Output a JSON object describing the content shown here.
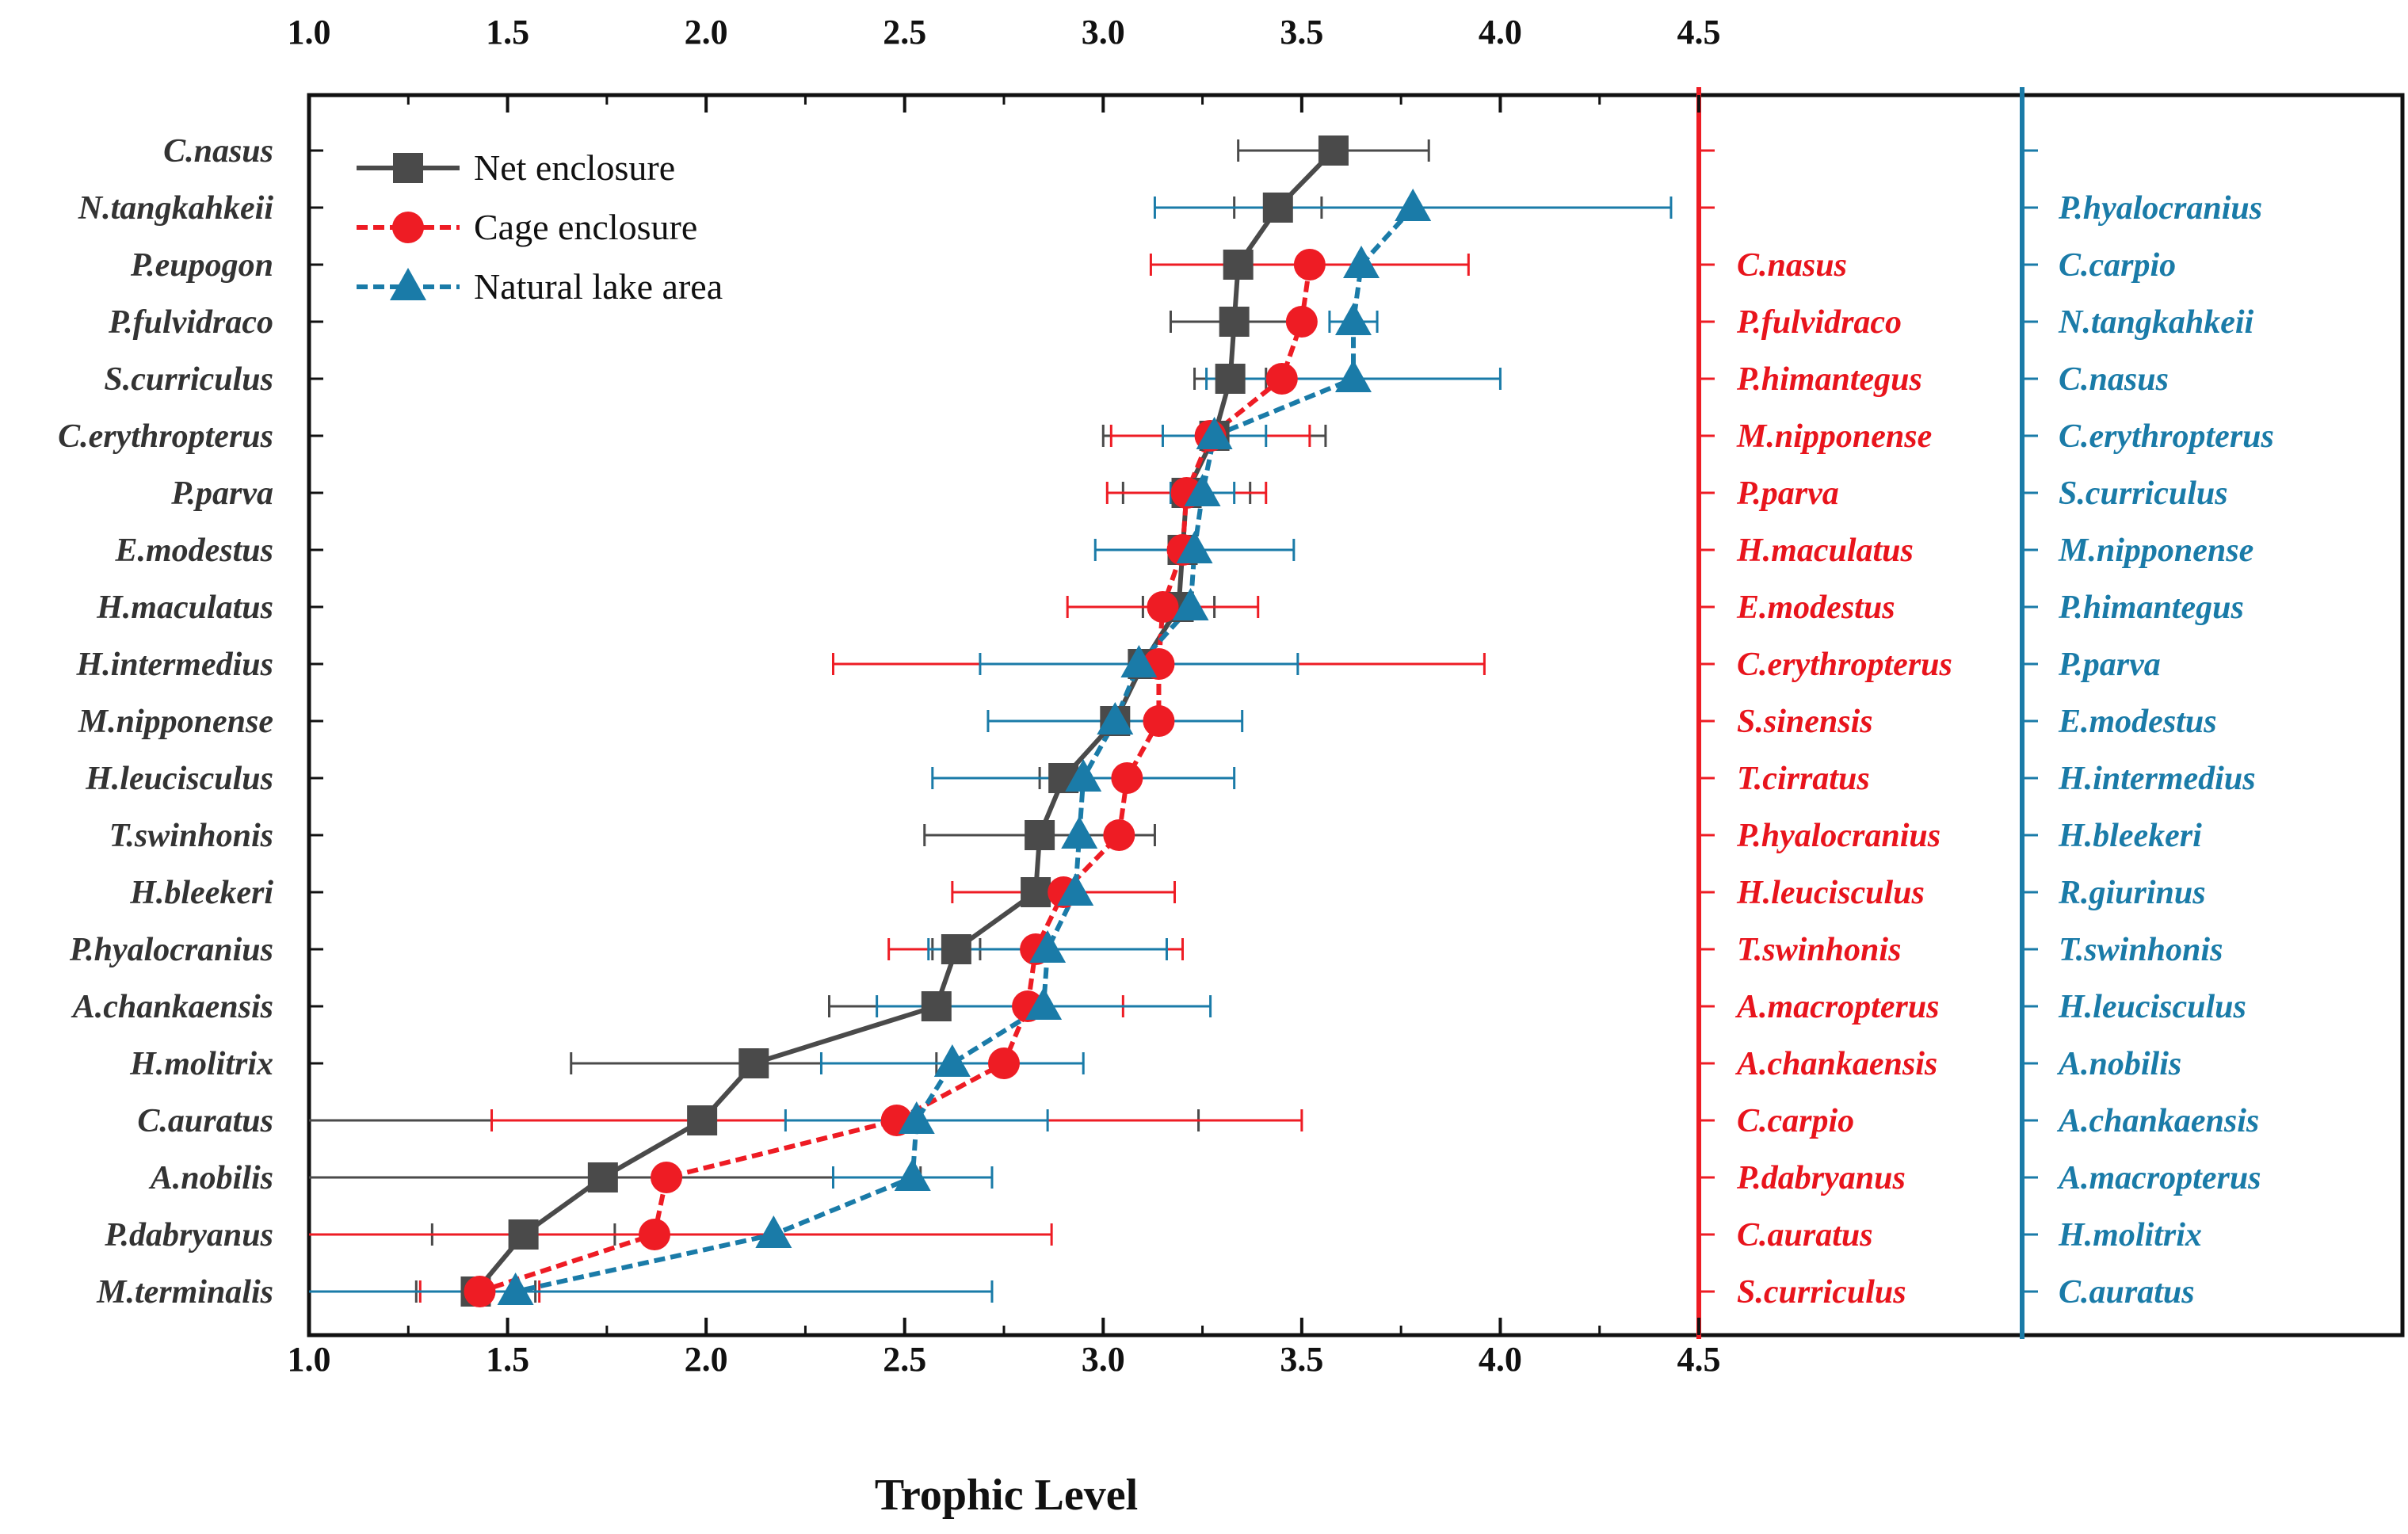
{
  "chart_data": {
    "type": "scatter",
    "xlabel": "Trophic Level",
    "xlim": [
      1.0,
      4.5
    ],
    "xticks": [
      "1.0",
      "1.5",
      "2.0",
      "2.5",
      "3.0",
      "3.5",
      "4.0",
      "4.5"
    ],
    "legend_position": "top-left",
    "categories": [
      "C.nasus",
      "N.tangkahkeii",
      "P.eupogon",
      "P.fulvidraco",
      "S.curriculus",
      "C.erythropterus",
      "P.parva",
      "E.modestus",
      "H.maculatus",
      "H.intermedius",
      "M.nipponense",
      "H.leucisculus",
      "T.swinhonis",
      "H.bleekeri",
      "P.hyalocranius",
      "A.chankaensis",
      "H.molitrix",
      "C.auratus",
      "A.nobilis",
      "P.dabryanus",
      "M.terminalis"
    ],
    "series": [
      {
        "name": "Net enclosure",
        "color": "#4a4a4a",
        "marker": "square",
        "line": "solid",
        "values": [
          3.58,
          3.44,
          3.34,
          3.33,
          3.32,
          3.28,
          3.21,
          3.2,
          3.19,
          3.1,
          3.03,
          2.9,
          2.84,
          2.83,
          2.63,
          2.58,
          2.12,
          1.99,
          1.74,
          1.54,
          1.42
        ],
        "errors": [
          0.24,
          0.11,
          null,
          0.16,
          0.09,
          0.28,
          0.16,
          null,
          0.09,
          null,
          null,
          0.06,
          0.29,
          null,
          0.06,
          0.27,
          0.46,
          1.25,
          0.8,
          0.23,
          0.15
        ]
      },
      {
        "name": "Cage enclosure",
        "color": "#ee1c24",
        "marker": "circle",
        "line": "dashed",
        "values": [
          null,
          null,
          3.52,
          3.5,
          3.45,
          3.27,
          3.21,
          3.2,
          3.15,
          3.14,
          3.14,
          3.06,
          3.04,
          2.9,
          2.83,
          2.81,
          2.75,
          2.48,
          1.9,
          1.87,
          1.43
        ],
        "errors": [
          null,
          null,
          0.4,
          null,
          null,
          0.25,
          0.2,
          null,
          0.24,
          0.82,
          null,
          null,
          null,
          0.28,
          0.37,
          0.24,
          null,
          1.02,
          null,
          1.0,
          0.15
        ]
      },
      {
        "name": "Natural lake area",
        "color": "#1a7ba8",
        "marker": "triangle",
        "line": "dashed",
        "values": [
          null,
          3.78,
          3.65,
          3.63,
          3.63,
          3.28,
          3.25,
          3.23,
          3.22,
          3.09,
          3.03,
          2.95,
          2.94,
          2.93,
          2.86,
          2.85,
          2.62,
          2.53,
          2.52,
          2.17,
          1.52
        ],
        "errors": [
          null,
          0.65,
          null,
          0.06,
          0.37,
          0.13,
          0.08,
          0.25,
          null,
          0.4,
          0.32,
          0.38,
          null,
          null,
          0.3,
          0.42,
          0.33,
          0.33,
          0.2,
          null,
          1.2
        ]
      }
    ],
    "right_columns": {
      "cage": {
        "color": "#ee1c24",
        "labels": [
          "",
          "",
          "C.nasus",
          "P.fulvidraco",
          "P.himantegus",
          "M.nipponense",
          "P.parva",
          "H.maculatus",
          "E.modestus",
          "C.erythropterus",
          "S.sinensis",
          "T.cirratus",
          "P.hyalocranius",
          "H.leucisculus",
          "T.swinhonis",
          "A.macropterus",
          "A.chankaensis",
          "C.carpio",
          "P.dabryanus",
          "C.auratus",
          "S.curriculus"
        ]
      },
      "natural": {
        "color": "#1a7ba8",
        "labels": [
          "",
          "P.hyalocranius",
          "C.carpio",
          "N.tangkahkeii",
          "C.nasus",
          "C.erythropterus",
          "S.curriculus",
          "M.nipponense",
          "P.himantegus",
          "P.parva",
          "E.modestus",
          "H.intermedius",
          "H.bleekeri",
          "R.giurinus",
          "T.swinhonis",
          "H.leucisculus",
          "A.nobilis",
          "A.chankaensis",
          "A.macropterus",
          "H.molitrix",
          "C.auratus"
        ]
      }
    }
  }
}
